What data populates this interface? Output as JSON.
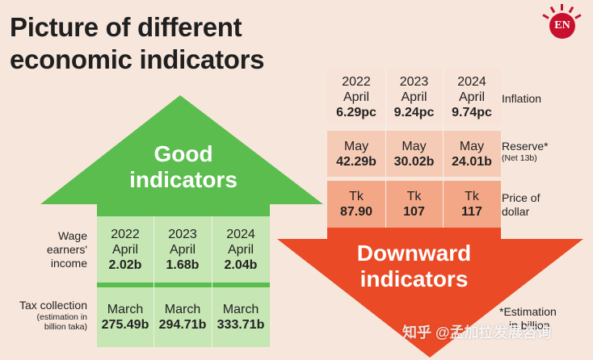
{
  "title": {
    "line1": "Picture of different",
    "line2": "economic indicators"
  },
  "logo": {
    "text": "EN"
  },
  "good_arrow": {
    "line1": "Good",
    "line2": "indicators",
    "color": "#5cbd4f"
  },
  "down_arrow": {
    "line1": "Downward",
    "line2": "indicators",
    "color": "#ea4a26"
  },
  "good_table": {
    "rows": [
      {
        "label_lines": [
          "Wage",
          "earners'",
          "income"
        ],
        "cells": [
          {
            "line1": "2022",
            "line2": "April",
            "value": "2.02b"
          },
          {
            "line1": "2023",
            "line2": "April",
            "value": "1.68b"
          },
          {
            "line1": "2024",
            "line2": "April",
            "value": "2.04b"
          }
        ]
      },
      {
        "label": "Tax collection",
        "sub_lines": [
          "(estimation in",
          "billion taka)"
        ],
        "cells": [
          {
            "line1": "March",
            "value": "275.49b"
          },
          {
            "line1": "March",
            "value": "294.71b"
          },
          {
            "line1": "March",
            "value": "333.71b"
          }
        ]
      }
    ]
  },
  "down_table": {
    "rows": [
      {
        "label": "Inflation",
        "cells": [
          {
            "line1": "2022",
            "line2": "April",
            "value": "6.29pc"
          },
          {
            "line1": "2023",
            "line2": "April",
            "value": "9.24pc"
          },
          {
            "line1": "2024",
            "line2": "April",
            "value": "9.74pc"
          }
        ]
      },
      {
        "label": "Reserve*",
        "sub": "(Net 13b)",
        "cells": [
          {
            "line1": "May",
            "value": "42.29b"
          },
          {
            "line1": "May",
            "value": "30.02b"
          },
          {
            "line1": "May",
            "value": "24.01b"
          }
        ]
      },
      {
        "label_lines": [
          "Price of",
          "dollar"
        ],
        "cells": [
          {
            "line1": "Tk",
            "value": "87.90"
          },
          {
            "line1": "Tk",
            "value": "107"
          },
          {
            "line1": "Tk",
            "value": "117"
          }
        ]
      }
    ]
  },
  "footnote": {
    "line1": "*Estimation",
    "line2": "in billion"
  },
  "watermark": "知乎 @孟加拉发展咨询"
}
